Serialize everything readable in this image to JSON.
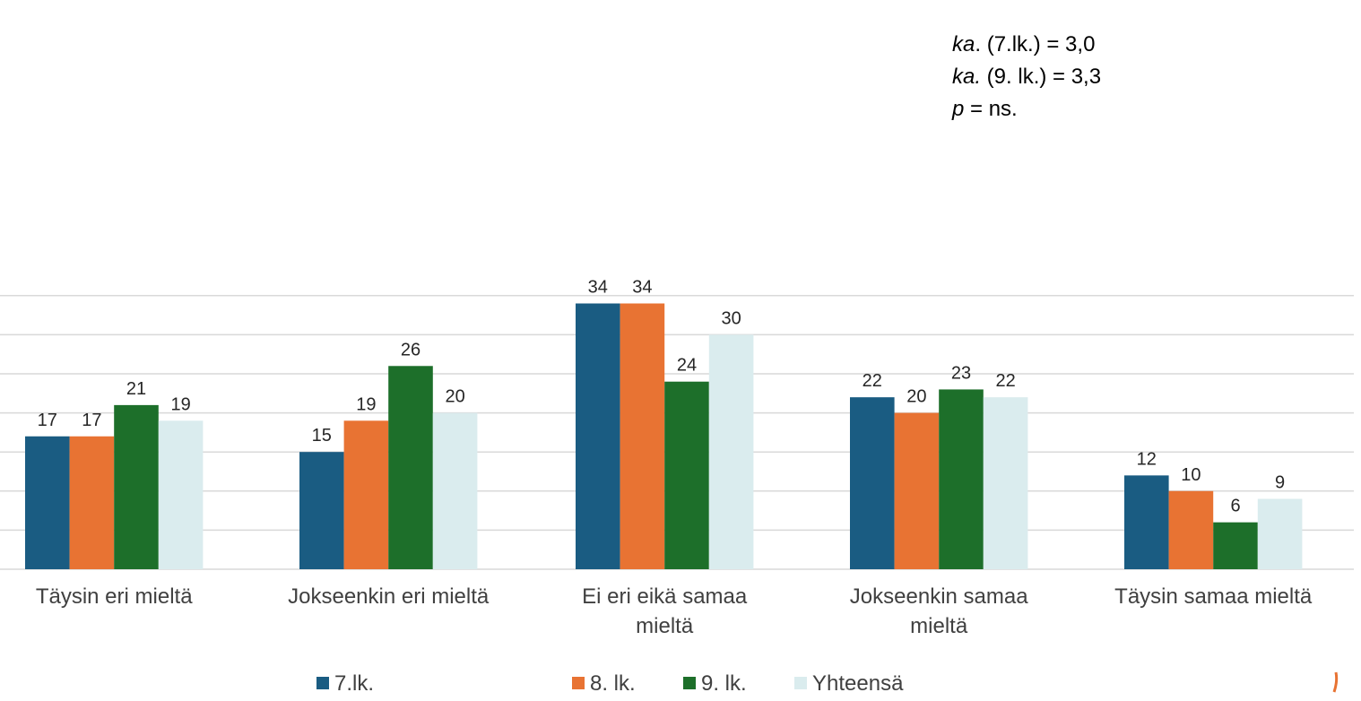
{
  "chart_data": {
    "type": "bar",
    "title": "",
    "xlabel": "",
    "ylabel": "",
    "ylim": [
      0,
      36
    ],
    "grid": true,
    "legend_placement": "bottom",
    "categories": [
      "Täysin eri mieltä",
      "Jokseenkin eri mieltä",
      "Ei eri eikä samaa mieltä",
      "Jokseenkin samaa mieltä",
      "Täysin samaa mieltä"
    ],
    "category_lines": [
      [
        "Täysin eri mieltä"
      ],
      [
        "Jokseenkin eri mieltä"
      ],
      [
        "Ei eri eikä samaa",
        "mieltä"
      ],
      [
        "Jokseenkin samaa",
        "mieltä"
      ],
      [
        "Täysin samaa mieltä"
      ]
    ],
    "series": [
      {
        "name": "7.lk.",
        "color": "#1a5c82",
        "values": [
          17,
          15,
          34,
          22,
          12
        ]
      },
      {
        "name": "8. lk.",
        "color": "#e87333",
        "values": [
          17,
          19,
          34,
          20,
          10
        ]
      },
      {
        "name": "9. lk.",
        "color": "#1d6f2a",
        "values": [
          21,
          26,
          24,
          23,
          6
        ]
      },
      {
        "name": "Yhteensä",
        "color": "#daecee",
        "values": [
          19,
          20,
          30,
          22,
          9
        ]
      }
    ],
    "annotations": [
      {
        "italic": "ka",
        "rest": ". (7.lk.) = 3,0"
      },
      {
        "italic": "ka.",
        "rest": " (9. lk.) = 3,3"
      },
      {
        "italic": "p",
        "rest": " = ns."
      }
    ]
  }
}
